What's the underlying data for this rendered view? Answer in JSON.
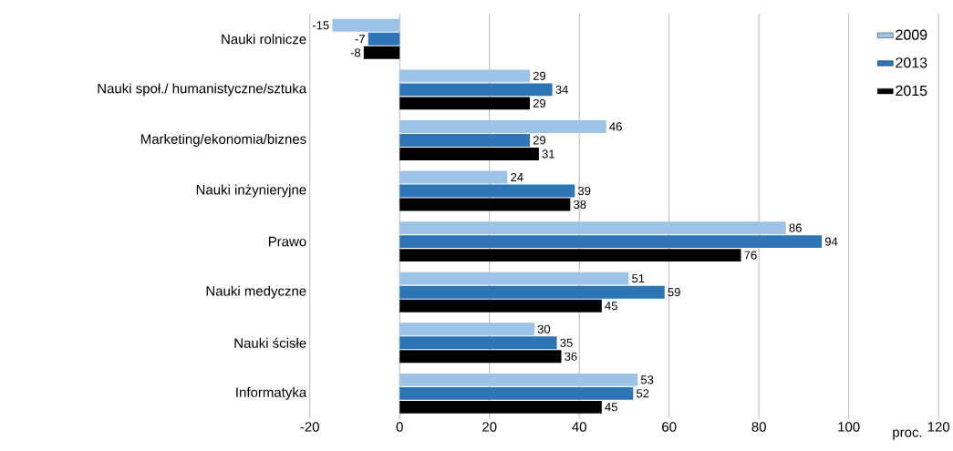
{
  "chart_data": {
    "type": "bar",
    "orientation": "horizontal",
    "xlabel": "proc.",
    "categories": [
      "Nauki rolnicze",
      "Nauki społ./  humanistyczne/sztuka",
      "Marketing/ekonomia/biznes",
      "Nauki inżynieryjne",
      "Prawo",
      "Nauki medyczne",
      "Nauki ścisłe",
      "Informatyka"
    ],
    "series": [
      {
        "name": "2009",
        "color": "#9dc3e6",
        "values": [
          -15,
          29,
          46,
          24,
          86,
          51,
          30,
          53
        ]
      },
      {
        "name": "2013",
        "color": "#2e75b6",
        "values": [
          -7,
          34,
          29,
          39,
          94,
          59,
          35,
          52
        ]
      },
      {
        "name": "2015",
        "color": "#000000",
        "values": [
          -8,
          29,
          31,
          38,
          76,
          45,
          36,
          45
        ]
      }
    ],
    "xlim": [
      -20,
      120
    ],
    "xticks": [
      -20,
      0,
      20,
      40,
      60,
      80,
      100,
      120
    ],
    "grid": "x",
    "legend": "top right",
    "data_labels": true
  }
}
